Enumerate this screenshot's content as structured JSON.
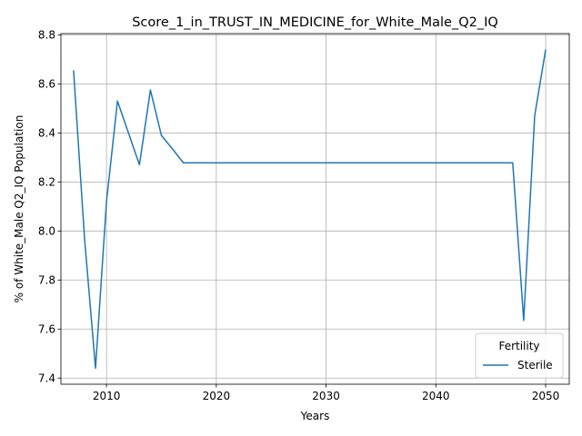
{
  "chart_data": {
    "type": "line",
    "title": "Score_1_in_TRUST_IN_MEDICINE_for_White_Male_Q2_IQ",
    "xlabel": "Years",
    "ylabel": "% of White_Male Q2_IQ Population",
    "xlim": [
      2005.85,
      2052.15
    ],
    "ylim": [
      7.375,
      8.805
    ],
    "xticks": [
      2010,
      2020,
      2030,
      2040,
      2050
    ],
    "yticks": [
      7.4,
      7.6,
      7.8,
      8.0,
      8.2,
      8.4,
      8.6,
      8.8
    ],
    "xtick_labels": [
      "2010",
      "2020",
      "2030",
      "2040",
      "2050"
    ],
    "ytick_labels": [
      "7.4",
      "7.6",
      "7.8",
      "8.0",
      "8.2",
      "8.4",
      "8.6",
      "8.8"
    ],
    "grid": true,
    "legend": {
      "title": "Fertility",
      "position": "lower-right"
    },
    "series": [
      {
        "name": "Sterile",
        "color": "#1f77b4",
        "x": [
          2007,
          2008,
          2009,
          2010,
          2011,
          2012,
          2013,
          2014,
          2015,
          2016,
          2017,
          2018,
          2019,
          2020,
          2021,
          2022,
          2023,
          2024,
          2025,
          2026,
          2027,
          2028,
          2029,
          2030,
          2031,
          2032,
          2033,
          2034,
          2035,
          2036,
          2037,
          2038,
          2039,
          2040,
          2041,
          2042,
          2043,
          2044,
          2045,
          2046,
          2047,
          2048,
          2049,
          2050
        ],
        "y": [
          8.655,
          7.97,
          7.44,
          8.12,
          8.53,
          8.4,
          8.27,
          8.575,
          8.39,
          8.335,
          8.278,
          8.278,
          8.278,
          8.278,
          8.278,
          8.278,
          8.278,
          8.278,
          8.278,
          8.278,
          8.278,
          8.278,
          8.278,
          8.278,
          8.278,
          8.278,
          8.278,
          8.278,
          8.278,
          8.278,
          8.278,
          8.278,
          8.278,
          8.278,
          8.278,
          8.278,
          8.278,
          8.278,
          8.278,
          8.278,
          8.278,
          7.635,
          8.47,
          8.74
        ]
      }
    ]
  }
}
